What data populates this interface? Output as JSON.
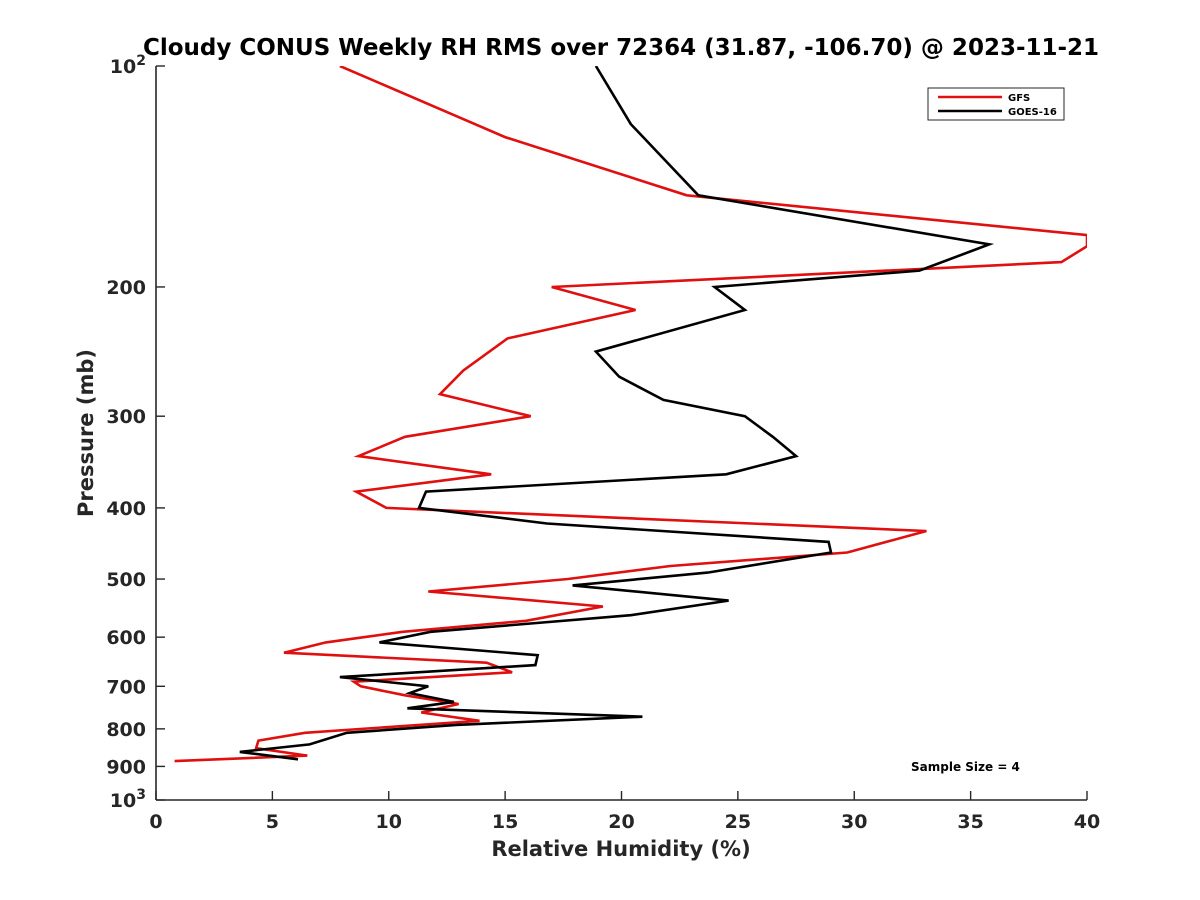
{
  "chart_data": {
    "type": "line",
    "title": "Cloudy CONUS Weekly RH RMS over 72364 (31.87, -106.70) @ 2023-11-21",
    "xlabel": "Relative Humidity (%)",
    "ylabel": "Pressure (mb)",
    "xlim": [
      0,
      40
    ],
    "ylim": [
      100,
      1000
    ],
    "yscale": "log",
    "y_reversed": true,
    "grid": false,
    "legend_position": "top-right",
    "x_ticks": [
      "0",
      "5",
      "10",
      "15",
      "20",
      "25",
      "30",
      "35",
      "40"
    ],
    "y_ticks": [
      {
        "value": 100,
        "base": "10",
        "exp": "2"
      },
      {
        "value": 200,
        "label": "200"
      },
      {
        "value": 300,
        "label": "300"
      },
      {
        "value": 400,
        "label": "400"
      },
      {
        "value": 500,
        "label": "500"
      },
      {
        "value": 600,
        "label": "600"
      },
      {
        "value": 700,
        "label": "700"
      },
      {
        "value": 800,
        "label": "800"
      },
      {
        "value": 900,
        "label": "900"
      },
      {
        "value": 1000,
        "base": "10",
        "exp": "3"
      }
    ],
    "series": [
      {
        "name": "GFS",
        "color": "#e01010",
        "points": [
          [
            7.9,
            100
          ],
          [
            15.0,
            125
          ],
          [
            22.8,
            150
          ],
          [
            40.0,
            170
          ],
          [
            40.0,
            176
          ],
          [
            38.9,
            185
          ],
          [
            17.0,
            200
          ],
          [
            20.6,
            215
          ],
          [
            15.1,
            235
          ],
          [
            13.2,
            260
          ],
          [
            12.2,
            280
          ],
          [
            16.1,
            300
          ],
          [
            10.7,
            320
          ],
          [
            8.7,
            340
          ],
          [
            14.4,
            360
          ],
          [
            8.6,
            380
          ],
          [
            9.9,
            400
          ],
          [
            33.1,
            430
          ],
          [
            29.7,
            460
          ],
          [
            22.1,
            480
          ],
          [
            17.7,
            500
          ],
          [
            11.7,
            520
          ],
          [
            19.2,
            545
          ],
          [
            15.9,
            570
          ],
          [
            10.6,
            590
          ],
          [
            7.3,
            610
          ],
          [
            5.5,
            630
          ],
          [
            14.2,
            650
          ],
          [
            15.3,
            670
          ],
          [
            8.5,
            690
          ],
          [
            8.8,
            700
          ],
          [
            10.7,
            720
          ],
          [
            13.0,
            740
          ],
          [
            11.4,
            760
          ],
          [
            13.9,
            780
          ],
          [
            6.4,
            810
          ],
          [
            4.4,
            830
          ],
          [
            4.3,
            850
          ],
          [
            6.5,
            870
          ],
          [
            0.8,
            885
          ]
        ]
      },
      {
        "name": "GOES-16",
        "color": "#000000",
        "points": [
          [
            18.9,
            100
          ],
          [
            20.4,
            120
          ],
          [
            23.3,
            150
          ],
          [
            35.8,
            175
          ],
          [
            32.8,
            190
          ],
          [
            24.0,
            200
          ],
          [
            25.3,
            215
          ],
          [
            18.9,
            245
          ],
          [
            19.9,
            265
          ],
          [
            21.8,
            285
          ],
          [
            25.3,
            300
          ],
          [
            26.5,
            320
          ],
          [
            27.5,
            340
          ],
          [
            24.5,
            360
          ],
          [
            11.6,
            380
          ],
          [
            11.3,
            400
          ],
          [
            16.8,
            420
          ],
          [
            28.9,
            445
          ],
          [
            29.0,
            460
          ],
          [
            23.7,
            490
          ],
          [
            17.9,
            510
          ],
          [
            24.6,
            535
          ],
          [
            20.4,
            560
          ],
          [
            11.8,
            590
          ],
          [
            9.6,
            610
          ],
          [
            16.4,
            635
          ],
          [
            16.3,
            655
          ],
          [
            7.9,
            680
          ],
          [
            11.7,
            700
          ],
          [
            10.9,
            715
          ],
          [
            12.8,
            735
          ],
          [
            10.8,
            750
          ],
          [
            20.9,
            770
          ],
          [
            12.9,
            790
          ],
          [
            8.2,
            810
          ],
          [
            6.6,
            840
          ],
          [
            3.6,
            860
          ],
          [
            6.1,
            880
          ]
        ]
      }
    ],
    "annotation": "Sample Size = 4"
  }
}
